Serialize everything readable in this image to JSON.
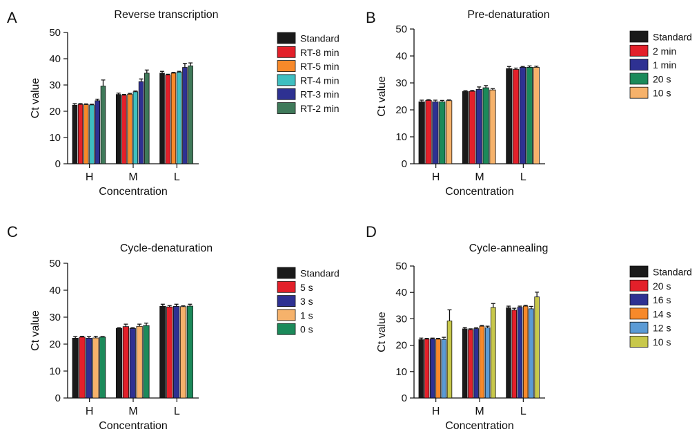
{
  "chart_data": [
    {
      "panel": "A",
      "type": "bar",
      "title": "Reverse transcription",
      "xlabel": "Concentration",
      "ylabel": "Ct value",
      "ylim": [
        0,
        50
      ],
      "yticks": [
        0,
        10,
        20,
        30,
        40,
        50
      ],
      "categories": [
        "H",
        "M",
        "L"
      ],
      "legend_position": "right",
      "series": [
        {
          "name": "Standard",
          "color": "#1a1a1a",
          "values": [
            22.3,
            26.4,
            34.5
          ],
          "errors": [
            0.6,
            0.5,
            0.7
          ]
        },
        {
          "name": "RT-8 min",
          "color": "#e3202a",
          "values": [
            22.6,
            26.1,
            33.8
          ],
          "errors": [
            0.3,
            0.3,
            0.3
          ]
        },
        {
          "name": "RT-5 min",
          "color": "#f7892a",
          "values": [
            22.5,
            26.5,
            34.5
          ],
          "errors": [
            0.3,
            0.3,
            0.3
          ]
        },
        {
          "name": "RT-4 min",
          "color": "#3fbfc1",
          "values": [
            22.4,
            27.4,
            34.9
          ],
          "errors": [
            0.3,
            0.3,
            0.3
          ]
        },
        {
          "name": "RT-3 min",
          "color": "#2e3192",
          "values": [
            24.0,
            31.3,
            36.7
          ],
          "errors": [
            0.6,
            1.0,
            1.5
          ]
        },
        {
          "name": "RT-2 min",
          "color": "#3f7a5a",
          "values": [
            29.6,
            34.5,
            37.3
          ],
          "errors": [
            2.3,
            1.2,
            1.1
          ]
        }
      ]
    },
    {
      "panel": "B",
      "type": "bar",
      "title": "Pre-denaturation",
      "xlabel": "Concentration",
      "ylabel": "Ct value",
      "ylim": [
        0,
        50
      ],
      "yticks": [
        0,
        10,
        20,
        30,
        40,
        50
      ],
      "categories": [
        "H",
        "M",
        "L"
      ],
      "legend_position": "right",
      "series": [
        {
          "name": "Standard",
          "color": "#1a1a1a",
          "values": [
            23.0,
            26.8,
            35.3
          ],
          "errors": [
            0.6,
            0.3,
            0.8
          ]
        },
        {
          "name": "2 min",
          "color": "#e3202a",
          "values": [
            23.5,
            26.9,
            35.0
          ],
          "errors": [
            0.3,
            0.3,
            0.5
          ]
        },
        {
          "name": "1 min",
          "color": "#2e3192",
          "values": [
            23.0,
            27.6,
            35.8
          ],
          "errors": [
            0.6,
            0.9,
            0.3
          ]
        },
        {
          "name": "20 s",
          "color": "#1b8a5a",
          "values": [
            23.0,
            28.2,
            35.8
          ],
          "errors": [
            0.5,
            0.8,
            0.5
          ]
        },
        {
          "name": "10 s",
          "color": "#f6b26b",
          "values": [
            23.4,
            27.4,
            35.8
          ],
          "errors": [
            0.3,
            0.5,
            0.4
          ]
        }
      ]
    },
    {
      "panel": "C",
      "type": "bar",
      "title": "Cycle-denaturation",
      "xlabel": "Concentration",
      "ylabel": "Ct value",
      "ylim": [
        0,
        50
      ],
      "yticks": [
        0,
        10,
        20,
        30,
        40,
        50
      ],
      "categories": [
        "H",
        "M",
        "L"
      ],
      "legend_position": "right",
      "series": [
        {
          "name": "Standard",
          "color": "#1a1a1a",
          "values": [
            22.2,
            25.8,
            34.0
          ],
          "errors": [
            0.6,
            0.3,
            0.8
          ]
        },
        {
          "name": "5 s",
          "color": "#e3202a",
          "values": [
            22.6,
            26.5,
            33.8
          ],
          "errors": [
            0.3,
            0.9,
            0.5
          ]
        },
        {
          "name": "3 s",
          "color": "#2e3192",
          "values": [
            22.2,
            25.8,
            34.0
          ],
          "errors": [
            0.6,
            0.3,
            0.8
          ]
        },
        {
          "name": "1 s",
          "color": "#f6b26b",
          "values": [
            22.3,
            26.6,
            33.9
          ],
          "errors": [
            0.6,
            0.8,
            0.3
          ]
        },
        {
          "name": "0 s",
          "color": "#1b8a5a",
          "values": [
            22.6,
            26.9,
            34.1
          ],
          "errors": [
            0.2,
            0.9,
            0.7
          ]
        }
      ]
    },
    {
      "panel": "D",
      "type": "bar",
      "title": "Cycle-annealing",
      "xlabel": "Concentration",
      "ylabel": "Ct value",
      "ylim": [
        0,
        50
      ],
      "yticks": [
        0,
        10,
        20,
        30,
        40,
        50
      ],
      "categories": [
        "H",
        "M",
        "L"
      ],
      "legend_position": "right",
      "series": [
        {
          "name": "Standard",
          "color": "#1a1a1a",
          "values": [
            22.1,
            26.2,
            34.2
          ],
          "errors": [
            0.6,
            0.5,
            0.6
          ]
        },
        {
          "name": "20 s",
          "color": "#e3202a",
          "values": [
            22.3,
            25.9,
            33.3
          ],
          "errors": [
            0.3,
            0.3,
            0.7
          ]
        },
        {
          "name": "16 s",
          "color": "#2e3192",
          "values": [
            22.4,
            26.3,
            34.4
          ],
          "errors": [
            0.3,
            0.3,
            0.4
          ]
        },
        {
          "name": "14 s",
          "color": "#f7892a",
          "values": [
            22.3,
            27.2,
            34.8
          ],
          "errors": [
            0.3,
            0.3,
            0.3
          ]
        },
        {
          "name": "12 s",
          "color": "#5b9bd5",
          "values": [
            22.2,
            26.6,
            33.8
          ],
          "errors": [
            0.8,
            0.6,
            0.9
          ]
        },
        {
          "name": "10 s",
          "color": "#c8c84b",
          "values": [
            29.2,
            34.3,
            38.3
          ],
          "errors": [
            4.2,
            1.5,
            1.8
          ]
        }
      ]
    }
  ]
}
